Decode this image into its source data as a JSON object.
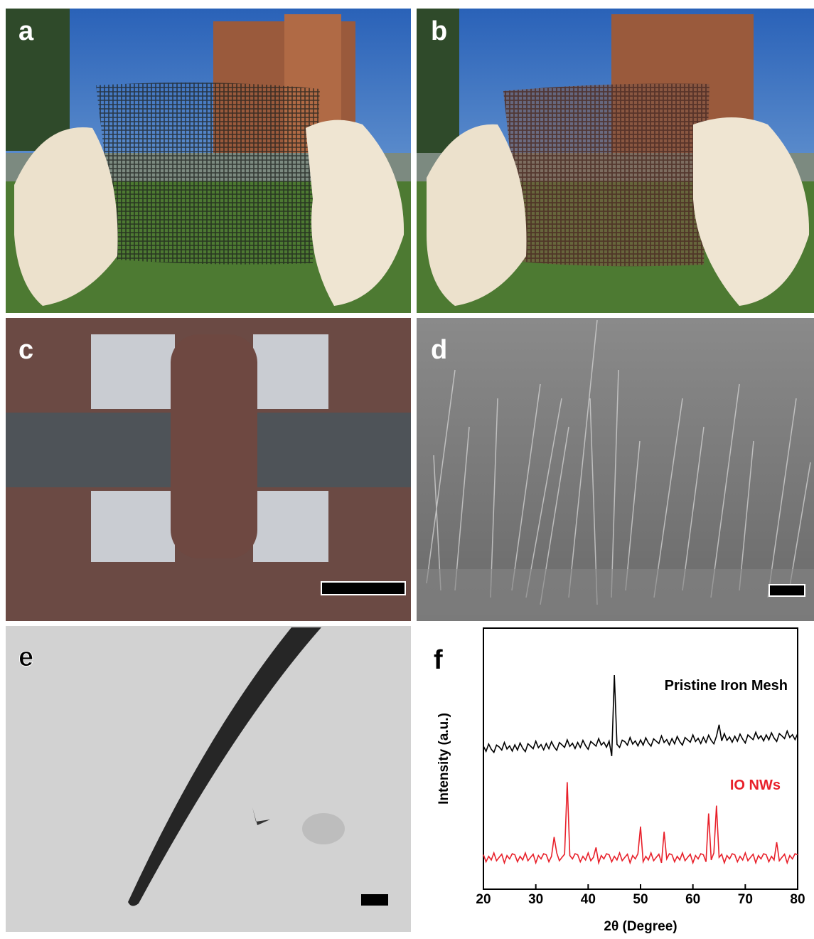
{
  "panels": [
    "a",
    "b",
    "c",
    "d",
    "e"
  ],
  "chart_data": {
    "type": "line",
    "panel_label": "f",
    "xlabel": "2θ (Degree)",
    "ylabel": "Intensity (a.u.)",
    "xlim": [
      20,
      80
    ],
    "xticks": [
      20,
      30,
      40,
      50,
      60,
      70,
      80
    ],
    "ylim": [
      0,
      100
    ],
    "x": [
      20,
      20.5,
      21,
      21.5,
      22,
      22.5,
      23,
      23.5,
      24,
      24.5,
      25,
      25.5,
      26,
      26.5,
      27,
      27.5,
      28,
      28.5,
      29,
      29.5,
      30,
      30.5,
      31,
      31.5,
      32,
      32.5,
      33,
      33.5,
      34,
      34.5,
      35,
      35.5,
      36,
      36.5,
      37,
      37.5,
      38,
      38.5,
      39,
      39.5,
      40,
      40.5,
      41,
      41.5,
      42,
      42.5,
      43,
      43.5,
      44,
      44.5,
      45,
      45.5,
      46,
      46.5,
      47,
      47.5,
      48,
      48.5,
      49,
      49.5,
      50,
      50.5,
      51,
      51.5,
      52,
      52.5,
      53,
      53.5,
      54,
      54.5,
      55,
      55.5,
      56,
      56.5,
      57,
      57.5,
      58,
      58.5,
      59,
      59.5,
      60,
      60.5,
      61,
      61.5,
      62,
      62.5,
      63,
      63.5,
      64,
      64.5,
      65,
      65.5,
      66,
      66.5,
      67,
      67.5,
      68,
      68.5,
      69,
      69.5,
      70,
      70.5,
      71,
      71.5,
      72,
      72.5,
      73,
      73.5,
      74,
      74.5,
      75,
      75.5,
      76,
      76.5,
      77,
      77.5,
      78,
      78.5,
      79,
      79.5,
      80
    ],
    "series": [
      {
        "name": "Pristine Iron Mesh",
        "color": "#000000",
        "values": [
          54.8,
          52.8,
          55.6,
          53.6,
          52.4,
          55.2,
          54.5,
          53.3,
          56.2,
          53.7,
          54.9,
          52.9,
          55.3,
          53.3,
          56.0,
          54.0,
          52.7,
          55.7,
          54.8,
          53.8,
          56.7,
          54.2,
          55.4,
          53.4,
          55.8,
          53.8,
          56.5,
          54.5,
          53.2,
          56.2,
          55.3,
          54.3,
          57.2,
          54.7,
          55.9,
          53.9,
          56.2,
          54.3,
          57.0,
          55.0,
          53.6,
          56.6,
          55.7,
          54.8,
          57.7,
          55.2,
          56.3,
          54.4,
          56.7,
          51.0,
          82,
          55.5,
          54.3,
          57.1,
          56.5,
          55.2,
          58.1,
          55.6,
          56.8,
          54.9,
          57.2,
          55.2,
          58.0,
          56.0,
          54.8,
          57.6,
          56.7,
          55.8,
          58.7,
          56.2,
          57.3,
          55.3,
          57.7,
          55.7,
          58.5,
          56.5,
          55.2,
          58.1,
          57.2,
          56.3,
          59.1,
          56.6,
          57.8,
          55.8,
          58.2,
          56.2,
          59.0,
          57.0,
          55.7,
          58.6,
          63,
          56.8,
          59.6,
          57.0,
          58.3,
          56.3,
          58.6,
          56.7,
          59.4,
          57.5,
          56.0,
          59.1,
          58.2,
          57.3,
          60.1,
          57.6,
          58.8,
          56.8,
          59.1,
          57.2,
          59.9,
          57.9,
          56.6,
          59.6,
          58.7,
          57.7,
          60.6,
          58.1,
          59.2,
          57.3,
          59.6
        ]
      },
      {
        "name": "IO NWs",
        "color": "#e8202a",
        "values": [
          13.2,
          10.5,
          12.6,
          11.2,
          13.9,
          10.9,
          12.2,
          13.4,
          10.1,
          12.9,
          11.6,
          13.6,
          13.2,
          10.5,
          12.6,
          11.2,
          13.9,
          10.9,
          12.2,
          13.4,
          10.1,
          12.9,
          11.6,
          13.6,
          13.2,
          10.5,
          12.6,
          20,
          13.9,
          10.9,
          12.2,
          13.4,
          41,
          12.9,
          11.6,
          13.6,
          13.2,
          10.5,
          12.6,
          11.2,
          13.9,
          10.9,
          12.2,
          16,
          10.1,
          12.9,
          11.6,
          13.6,
          13.2,
          10.5,
          12.6,
          11.2,
          13.9,
          10.9,
          12.2,
          13.4,
          10.1,
          12.9,
          11.6,
          13.6,
          24,
          10.5,
          12.6,
          11.2,
          13.9,
          10.9,
          12.2,
          13.4,
          10.1,
          22,
          11.6,
          13.6,
          13.2,
          10.5,
          12.6,
          11.2,
          13.9,
          10.9,
          12.2,
          13.4,
          10.1,
          12.9,
          11.6,
          13.6,
          13.2,
          10.5,
          29,
          11.2,
          13.9,
          32,
          12.2,
          13.4,
          10.1,
          12.9,
          11.6,
          13.6,
          13.2,
          10.5,
          12.6,
          11.2,
          13.9,
          10.9,
          12.2,
          13.4,
          10.1,
          12.9,
          11.6,
          13.6,
          13.2,
          10.5,
          12.6,
          11.2,
          18,
          10.9,
          12.2,
          13.4,
          10.1,
          12.9,
          11.6,
          13.6,
          13.2
        ]
      }
    ]
  }
}
